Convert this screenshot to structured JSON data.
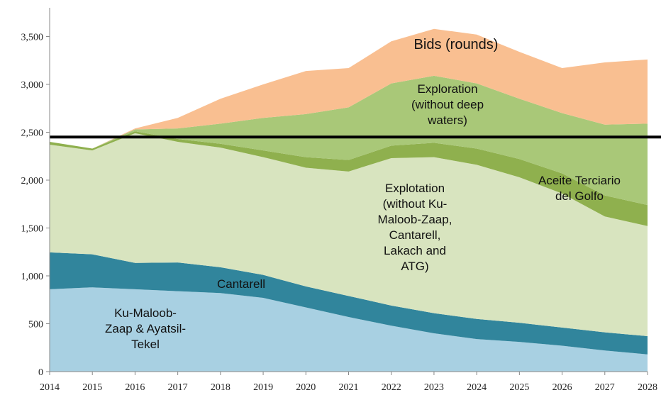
{
  "chart_data": {
    "type": "stacked_area",
    "x": [
      2014,
      2015,
      2016,
      2017,
      2018,
      2019,
      2020,
      2021,
      2022,
      2023,
      2024,
      2025,
      2026,
      2027,
      2028
    ],
    "series": [
      {
        "name": "Ku-Maloob-\nZaap & Ayatsil-\nTekel",
        "color": "#a8d0e2",
        "values": [
          860,
          880,
          860,
          840,
          820,
          770,
          670,
          570,
          480,
          400,
          340,
          310,
          270,
          220,
          180
        ]
      },
      {
        "name": "Cantarell",
        "color": "#31859c",
        "values": [
          385,
          345,
          275,
          300,
          270,
          240,
          220,
          220,
          210,
          210,
          210,
          200,
          190,
          190,
          190
        ]
      },
      {
        "name": "Explotation\n(without Ku-\nMaloob-Zaap,\nCantarell,\nLakach and\nATG)",
        "color": "#d8e4bf",
        "values": [
          1125,
          1085,
          1355,
          1260,
          1250,
          1230,
          1240,
          1300,
          1540,
          1630,
          1610,
          1520,
          1400,
          1210,
          1150
        ]
      },
      {
        "name": "Aceite Terciario\ndel Golfo",
        "color": "#8fb04e",
        "values": [
          30,
          20,
          20,
          30,
          40,
          70,
          110,
          120,
          130,
          150,
          170,
          190,
          210,
          220,
          220
        ]
      },
      {
        "name": "Exploration\n(without deep\nwaters)",
        "color": "#a9c878",
        "values": [
          0,
          0,
          20,
          110,
          210,
          340,
          450,
          550,
          650,
          700,
          680,
          630,
          630,
          740,
          850
        ]
      },
      {
        "name": "Bids (rounds)",
        "color": "#f9bf91",
        "values": [
          0,
          0,
          10,
          110,
          260,
          350,
          450,
          410,
          440,
          490,
          510,
          490,
          470,
          650,
          670
        ]
      }
    ],
    "xlim": [
      2014,
      2028
    ],
    "xticks": [
      2014,
      2015,
      2016,
      2017,
      2018,
      2019,
      2020,
      2021,
      2022,
      2023,
      2024,
      2025,
      2026,
      2027,
      2028
    ],
    "ylim": [
      0,
      3800
    ],
    "yticks": [
      0,
      500,
      {
        "value": 1000,
        "label": "1,000"
      },
      {
        "value": 1500,
        "label": "1,500"
      },
      {
        "value": 2000,
        "label": "2,000"
      },
      {
        "value": 2500,
        "label": "2,500"
      },
      {
        "value": 3000,
        "label": "3,000"
      },
      {
        "value": 3500,
        "label": "3,500"
      }
    ],
    "hline": 2450
  }
}
